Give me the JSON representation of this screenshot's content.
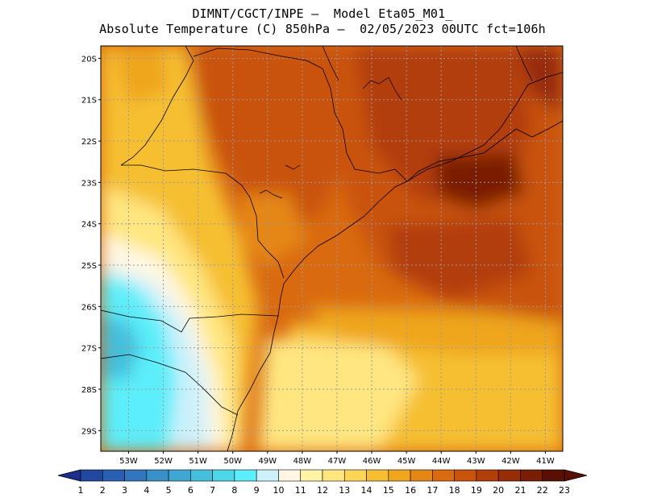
{
  "title_line1": "DIMNT/CGCT/INPE –  Model Eta05_M01_",
  "title_line2": "Absolute Temperature (C) 850hPa –  02/05/2023 00UTC fct=106h",
  "lat_labels": [
    "20S",
    "21S",
    "22S",
    "23S",
    "24S",
    "25S",
    "26S",
    "27S",
    "28S",
    "29S"
  ],
  "lon_labels": [
    "53W",
    "52W",
    "51W",
    "50W",
    "49W",
    "48W",
    "47W",
    "46W",
    "45W",
    "44W",
    "43W",
    "42W",
    "41W"
  ],
  "colorbar": {
    "labels": [
      "1",
      "2",
      "3",
      "4",
      "5",
      "6",
      "7",
      "8",
      "9",
      "10",
      "11",
      "12",
      "13",
      "14",
      "15",
      "16",
      "17",
      "18",
      "19",
      "20",
      "21",
      "22",
      "23"
    ],
    "colors": [
      "#1c2f8c",
      "#22479f",
      "#2a5faf",
      "#3277bd",
      "#3a8fc8",
      "#3fa7d2",
      "#45bfdc",
      "#4dd6e8",
      "#5ceefa",
      "#cdf1fb",
      "#fff7e3",
      "#fff3a6",
      "#ffe680",
      "#fbd458",
      "#f6bf33",
      "#efa51e",
      "#e58717",
      "#d96a10",
      "#c9520c",
      "#b23e0a",
      "#962c08",
      "#791e06",
      "#5a0f04"
    ]
  },
  "map_extent": {
    "lon_min": -53.8,
    "lon_max": -40.5,
    "lat_min": -29.5,
    "lat_max": -19.7
  }
}
